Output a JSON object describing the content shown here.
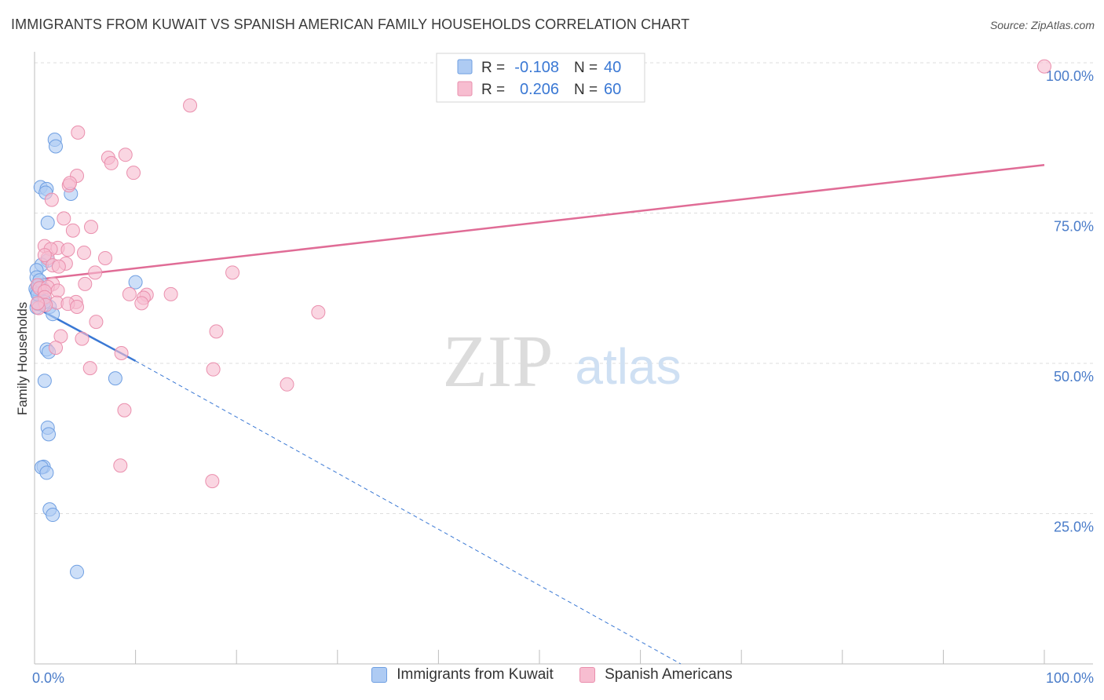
{
  "header": {
    "title": "IMMIGRANTS FROM KUWAIT VS SPANISH AMERICAN FAMILY HOUSEHOLDS CORRELATION CHART",
    "source": "Source: ZipAtlas.com"
  },
  "watermark": {
    "zip": "ZIP",
    "atlas": "atlas"
  },
  "stats_legend": [
    {
      "r_label": "R = ",
      "r_value": "-0.108",
      "n_label": "N = ",
      "n_value": "40"
    },
    {
      "r_label": "R = ",
      "r_value": "0.206",
      "n_label": "N = ",
      "n_value": "60"
    }
  ],
  "colors": {
    "blue_fill": "#aecbf3",
    "blue_stroke": "#6f9fe2",
    "blue_line": "#3a78d4",
    "pink_fill": "#f7bdd0",
    "pink_stroke": "#ea8fad",
    "pink_line": "#e06c96",
    "tick_text": "#4a7cc9",
    "grid": "#dedede"
  },
  "chart_data": {
    "type": "scatter",
    "xlabel": "",
    "ylabel": "Family Households",
    "xlim": [
      0,
      100
    ],
    "ylim": [
      0,
      100
    ],
    "x_ticks": [
      0,
      10,
      20,
      30,
      40,
      50,
      60,
      70,
      80,
      90,
      100
    ],
    "x_tick_labels": [
      {
        "value": 0,
        "label": "0.0%"
      },
      {
        "value": 100,
        "label": "100.0%"
      }
    ],
    "y_ticks": [
      {
        "value": 25,
        "label": "25.0%"
      },
      {
        "value": 50,
        "label": "50.0%"
      },
      {
        "value": 75,
        "label": "75.0%"
      },
      {
        "value": 100,
        "label": "100.0%"
      }
    ],
    "grid": true,
    "legend_position": "bottom-center",
    "series": [
      {
        "name": "Immigrants from Kuwait",
        "color": "#aecbf3",
        "points": [
          [
            2.0,
            87.2
          ],
          [
            2.1,
            86.1
          ],
          [
            0.6,
            79.3
          ],
          [
            1.2,
            79.0
          ],
          [
            1.1,
            78.4
          ],
          [
            3.6,
            78.2
          ],
          [
            1.3,
            73.4
          ],
          [
            1.3,
            67.1
          ],
          [
            0.7,
            66.4
          ],
          [
            0.2,
            65.5
          ],
          [
            0.2,
            64.3
          ],
          [
            0.4,
            62.3
          ],
          [
            0.3,
            62.8
          ],
          [
            0.2,
            62.0
          ],
          [
            0.5,
            61.0
          ],
          [
            0.1,
            62.4
          ],
          [
            0.9,
            60.6
          ],
          [
            0.6,
            59.8
          ],
          [
            0.2,
            59.3
          ],
          [
            0.3,
            59.9
          ],
          [
            1.5,
            59.4
          ],
          [
            1.8,
            58.2
          ],
          [
            10.0,
            63.5
          ],
          [
            1.2,
            52.3
          ],
          [
            1.4,
            51.9
          ],
          [
            8.0,
            47.5
          ],
          [
            1.0,
            47.1
          ],
          [
            1.3,
            39.3
          ],
          [
            1.4,
            38.2
          ],
          [
            0.9,
            32.8
          ],
          [
            0.7,
            32.7
          ],
          [
            1.2,
            31.8
          ],
          [
            1.5,
            25.7
          ],
          [
            1.8,
            24.8
          ],
          [
            4.2,
            15.3
          ],
          [
            0.4,
            63.0
          ],
          [
            0.3,
            61.5
          ],
          [
            0.8,
            62.5
          ],
          [
            1.0,
            60.2
          ],
          [
            0.5,
            63.8
          ]
        ]
      },
      {
        "name": "Spanish Americans",
        "color": "#f7bdd0",
        "points": [
          [
            100.0,
            99.4
          ],
          [
            15.4,
            92.9
          ],
          [
            4.3,
            88.4
          ],
          [
            7.3,
            84.2
          ],
          [
            9.0,
            84.7
          ],
          [
            7.6,
            83.3
          ],
          [
            9.8,
            81.7
          ],
          [
            4.2,
            81.2
          ],
          [
            3.4,
            79.6
          ],
          [
            3.5,
            80.0
          ],
          [
            1.7,
            77.2
          ],
          [
            2.9,
            74.1
          ],
          [
            5.6,
            72.7
          ],
          [
            3.8,
            72.1
          ],
          [
            1.0,
            69.5
          ],
          [
            2.3,
            69.2
          ],
          [
            1.6,
            69.0
          ],
          [
            4.9,
            68.4
          ],
          [
            3.3,
            68.9
          ],
          [
            7.0,
            67.5
          ],
          [
            1.3,
            67.5
          ],
          [
            1.0,
            68.0
          ],
          [
            3.1,
            66.6
          ],
          [
            1.8,
            66.3
          ],
          [
            2.4,
            66.1
          ],
          [
            6.0,
            65.1
          ],
          [
            19.6,
            65.1
          ],
          [
            5.0,
            63.2
          ],
          [
            1.8,
            63.2
          ],
          [
            0.3,
            63.0
          ],
          [
            0.5,
            62.5
          ],
          [
            1.3,
            62.7
          ],
          [
            2.3,
            62.1
          ],
          [
            1.0,
            62.0
          ],
          [
            9.4,
            61.5
          ],
          [
            13.5,
            61.5
          ],
          [
            11.1,
            61.4
          ],
          [
            1.0,
            61.0
          ],
          [
            10.8,
            60.9
          ],
          [
            2.2,
            60.1
          ],
          [
            4.1,
            60.2
          ],
          [
            3.3,
            59.9
          ],
          [
            1.1,
            59.7
          ],
          [
            0.4,
            59.2
          ],
          [
            4.2,
            59.4
          ],
          [
            0.3,
            60.0
          ],
          [
            10.6,
            60.0
          ],
          [
            28.1,
            58.5
          ],
          [
            6.1,
            56.9
          ],
          [
            18.0,
            55.3
          ],
          [
            2.6,
            54.5
          ],
          [
            4.7,
            54.1
          ],
          [
            2.1,
            52.6
          ],
          [
            8.6,
            51.7
          ],
          [
            5.5,
            49.2
          ],
          [
            17.7,
            49.0
          ],
          [
            25.0,
            46.5
          ],
          [
            8.9,
            42.2
          ],
          [
            8.5,
            33.0
          ],
          [
            17.6,
            30.4
          ]
        ]
      }
    ],
    "trend_lines": [
      {
        "series": "Immigrants from Kuwait",
        "solid": [
          [
            0,
            59.4
          ],
          [
            10,
            50.4
          ]
        ],
        "dashed": [
          [
            10,
            50.4
          ],
          [
            64,
            0
          ]
        ]
      },
      {
        "series": "Spanish Americans",
        "solid": [
          [
            0,
            63.9
          ],
          [
            100,
            83.0
          ]
        ]
      }
    ]
  }
}
